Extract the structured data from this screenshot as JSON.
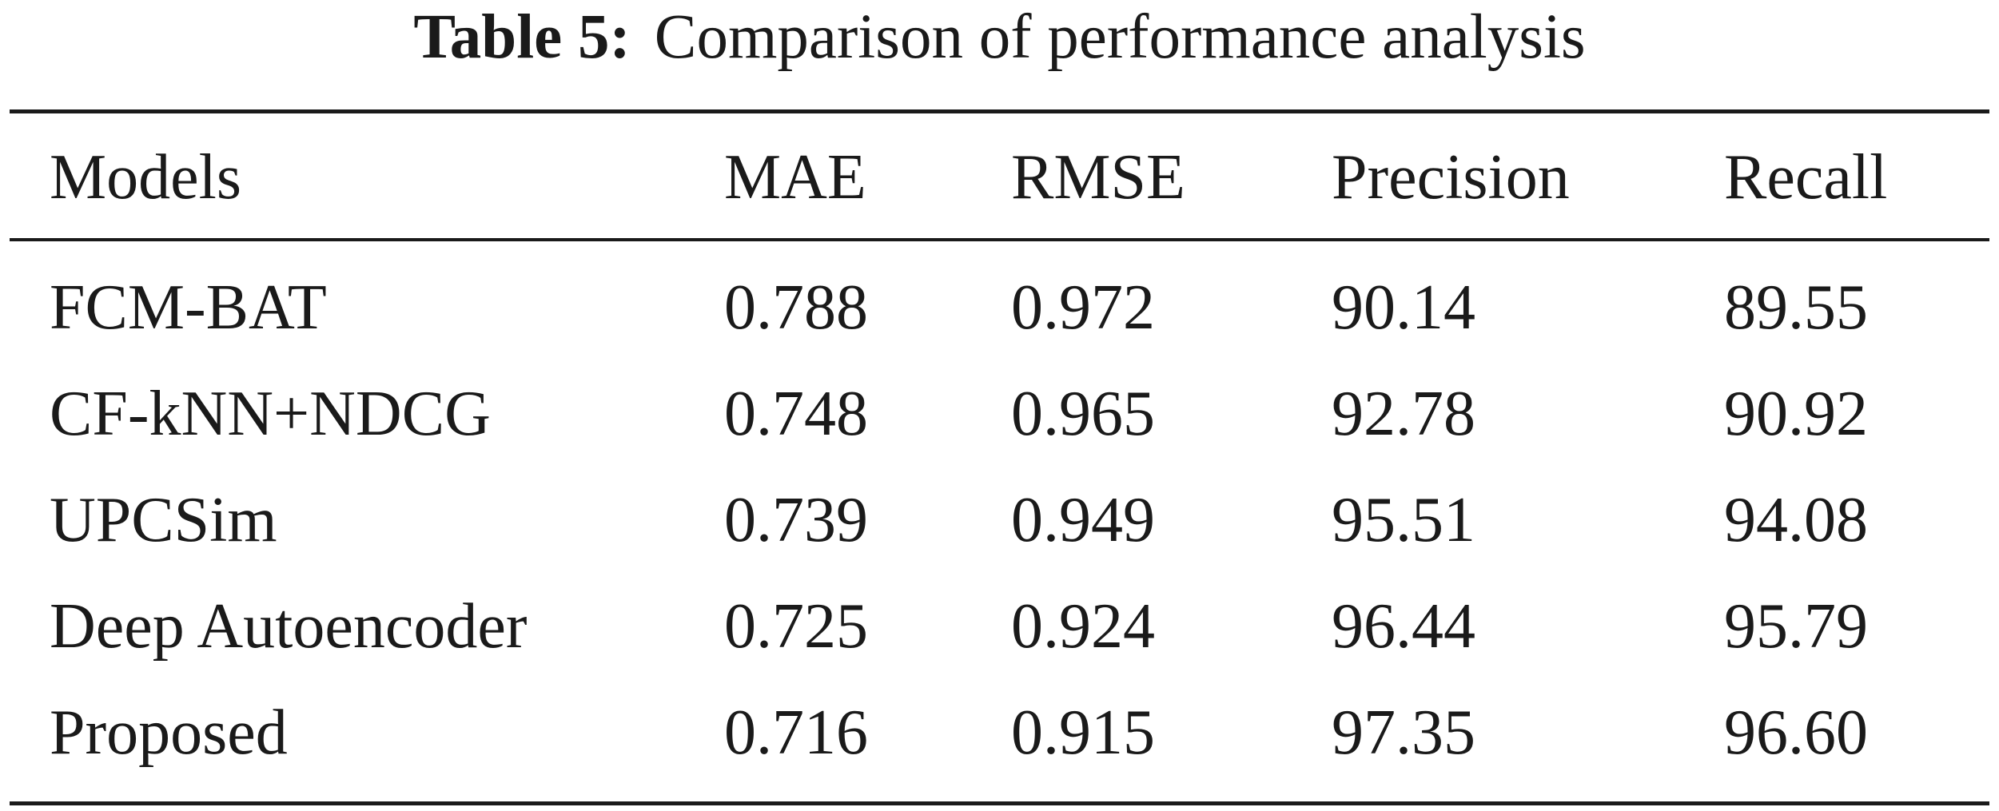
{
  "caption": {
    "label": "Table 5:",
    "text": "Comparison of performance analysis"
  },
  "table": {
    "columns": [
      "Models",
      "MAE",
      "RMSE",
      "Precision",
      "Recall"
    ],
    "rows": [
      [
        "FCM-BAT",
        "0.788",
        "0.972",
        "90.14",
        "89.55"
      ],
      [
        "CF-kNN+NDCG",
        "0.748",
        "0.965",
        "92.78",
        "90.92"
      ],
      [
        "UPCSim",
        "0.739",
        "0.949",
        "95.51",
        "94.08"
      ],
      [
        "Deep Autoencoder",
        "0.725",
        "0.924",
        "96.44",
        "95.79"
      ],
      [
        "Proposed",
        "0.716",
        "0.915",
        "97.35",
        "96.60"
      ]
    ]
  }
}
